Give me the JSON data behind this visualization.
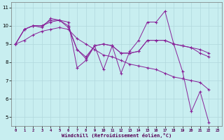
{
  "xlabel": "Windchill (Refroidissement éolien,°C)",
  "bg_color": "#c8eef0",
  "grid_color": "#b0d8dc",
  "line_color": "#882299",
  "xlim": [
    -0.5,
    23.5
  ],
  "ylim": [
    4.5,
    11.3
  ],
  "yticks": [
    5,
    6,
    7,
    8,
    9,
    10,
    11
  ],
  "xticks": [
    0,
    1,
    2,
    3,
    4,
    5,
    6,
    7,
    8,
    9,
    10,
    11,
    12,
    13,
    14,
    15,
    16,
    17,
    18,
    19,
    20,
    21,
    22,
    23
  ],
  "series": [
    [
      9.0,
      9.8,
      10.0,
      10.0,
      10.3,
      10.3,
      10.2,
      7.7,
      8.1,
      8.9,
      7.6,
      8.9,
      7.4,
      8.6,
      9.2,
      10.2,
      10.2,
      10.8,
      9.0,
      7.5,
      5.3,
      6.4,
      4.7
    ],
    [
      9.0,
      9.8,
      10.0,
      9.9,
      10.4,
      10.3,
      10.0,
      8.7,
      8.3,
      8.9,
      9.0,
      8.9,
      8.5,
      8.5,
      8.6,
      9.2,
      9.2,
      9.2,
      9.0,
      8.9,
      8.8,
      8.7,
      8.5
    ],
    [
      9.0,
      9.8,
      10.0,
      10.0,
      10.2,
      10.3,
      9.9,
      8.7,
      8.2,
      8.9,
      9.0,
      8.9,
      8.5,
      8.5,
      8.6,
      9.2,
      9.2,
      9.2,
      9.0,
      8.9,
      8.8,
      8.5,
      8.3
    ],
    [
      9.0,
      9.2,
      9.5,
      9.7,
      9.8,
      9.9,
      9.8,
      9.3,
      9.0,
      8.7,
      8.4,
      8.3,
      8.1,
      7.9,
      7.8,
      7.7,
      7.6,
      7.4,
      7.2,
      7.1,
      7.0,
      6.9,
      6.5
    ]
  ]
}
